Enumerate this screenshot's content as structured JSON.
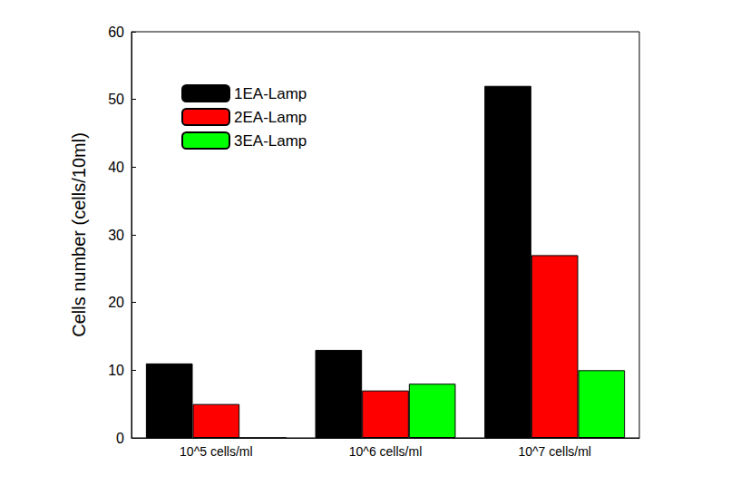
{
  "chart_data": {
    "type": "bar",
    "ylabel": "Cells number (cells/10ml)",
    "categories": [
      "10^5 cells/ml",
      "10^6 cells/ml",
      "10^7 cells/ml"
    ],
    "series": [
      {
        "name": "1EA-Lamp",
        "color": "#000000",
        "values": [
          11,
          13,
          52
        ]
      },
      {
        "name": "2EA-Lamp",
        "color": "#ff0000",
        "values": [
          5,
          7,
          27
        ]
      },
      {
        "name": "3EA-Lamp",
        "color": "#00ff00",
        "values": [
          0,
          8,
          10
        ]
      }
    ],
    "ylim": [
      0,
      60
    ],
    "yticks": [
      0,
      10,
      20,
      30,
      40,
      50,
      60
    ],
    "grid": false,
    "legend": "upper left"
  }
}
